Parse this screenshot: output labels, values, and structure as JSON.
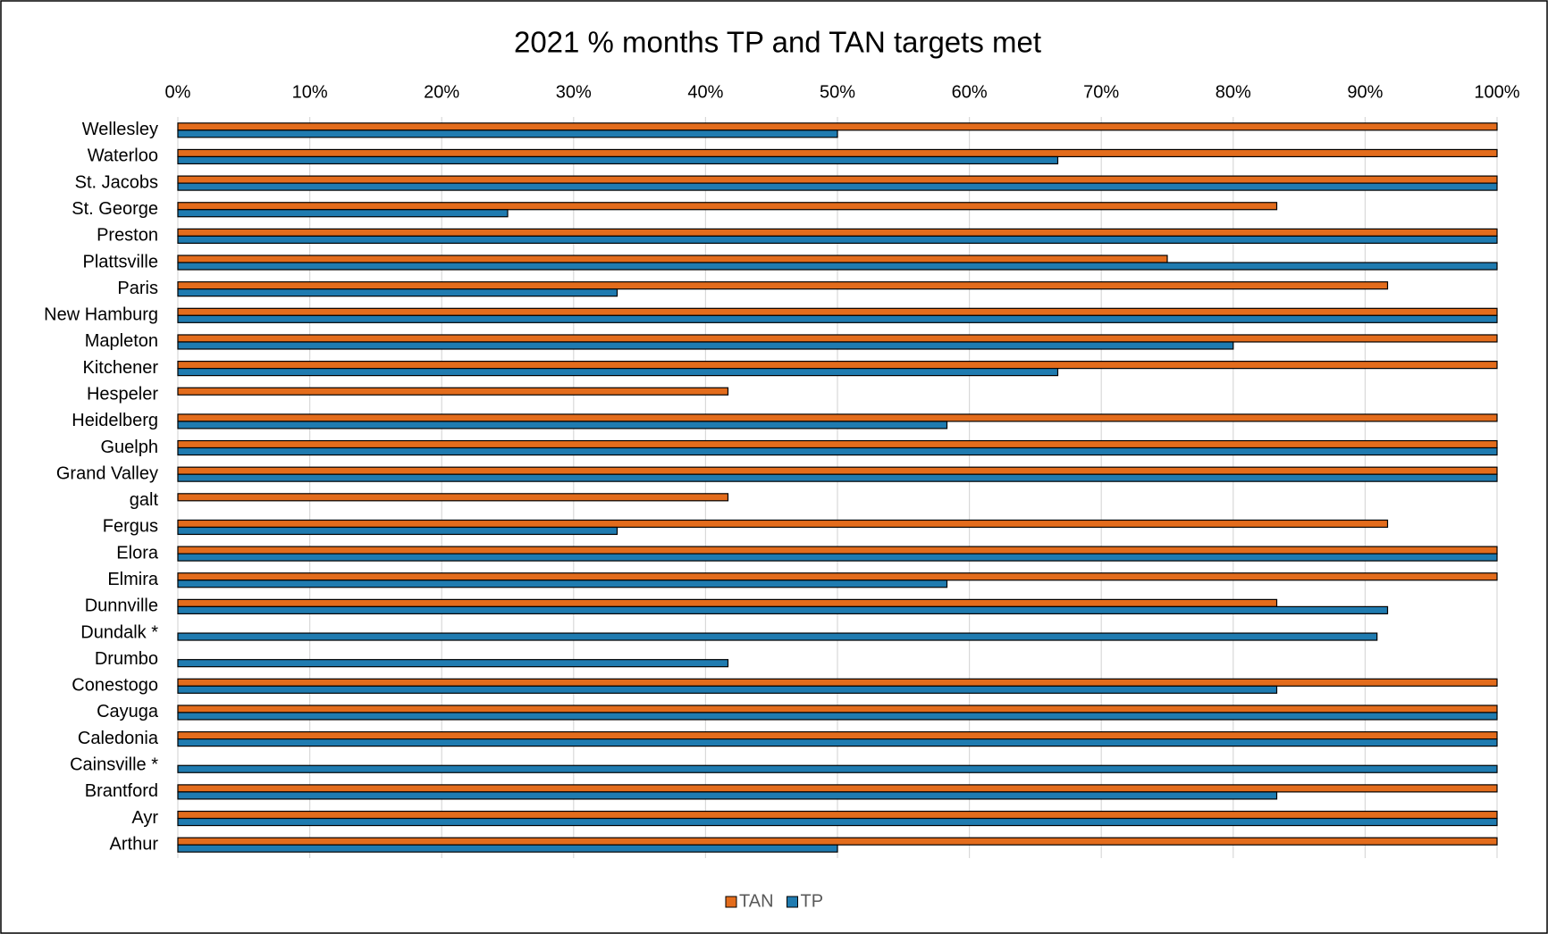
{
  "chart_data": {
    "type": "hbar",
    "title": "2021 % months TP and TAN targets met",
    "categories": [
      "Wellesley",
      "Waterloo",
      "St. Jacobs",
      "St. George",
      "Preston",
      "Plattsville",
      "Paris",
      "New Hamburg",
      "Mapleton",
      "Kitchener",
      "Hespeler",
      "Heidelberg",
      "Guelph",
      "Grand Valley",
      "galt",
      "Fergus",
      "Elora",
      "Elmira",
      "Dunnville",
      "Dundalk *",
      "Drumbo",
      "Conestogo",
      "Cayuga",
      "Caledonia",
      "Cainsville *",
      "Brantford",
      "Ayr",
      "Arthur"
    ],
    "series": [
      {
        "name": "TAN",
        "color": "#e36c1c",
        "values": [
          100,
          100,
          100,
          83.3,
          100,
          75,
          91.7,
          100,
          100,
          100,
          41.7,
          100,
          100,
          100,
          41.7,
          91.7,
          100,
          100,
          83.3,
          null,
          null,
          100,
          100,
          100,
          null,
          100,
          100,
          100
        ]
      },
      {
        "name": "TP",
        "color": "#1f7bb0",
        "values": [
          50,
          66.7,
          100,
          25,
          100,
          100,
          33.3,
          100,
          80,
          66.7,
          null,
          58.3,
          100,
          100,
          null,
          33.3,
          100,
          58.3,
          91.7,
          90.9,
          41.7,
          83.3,
          100,
          100,
          100,
          83.3,
          100,
          50
        ]
      }
    ],
    "xlim": [
      0,
      100
    ],
    "xticks": [
      {
        "value": 0,
        "label": "0%"
      },
      {
        "value": 10,
        "label": "10%"
      },
      {
        "value": 20,
        "label": "20%"
      },
      {
        "value": 30,
        "label": "30%"
      },
      {
        "value": 40,
        "label": "40%"
      },
      {
        "value": 50,
        "label": "50%"
      },
      {
        "value": 60,
        "label": "60%"
      },
      {
        "value": 70,
        "label": "70%"
      },
      {
        "value": 80,
        "label": "80%"
      },
      {
        "value": 90,
        "label": "90%"
      },
      {
        "value": 100,
        "label": "100%"
      }
    ],
    "grid": true,
    "legend": "bottom"
  }
}
